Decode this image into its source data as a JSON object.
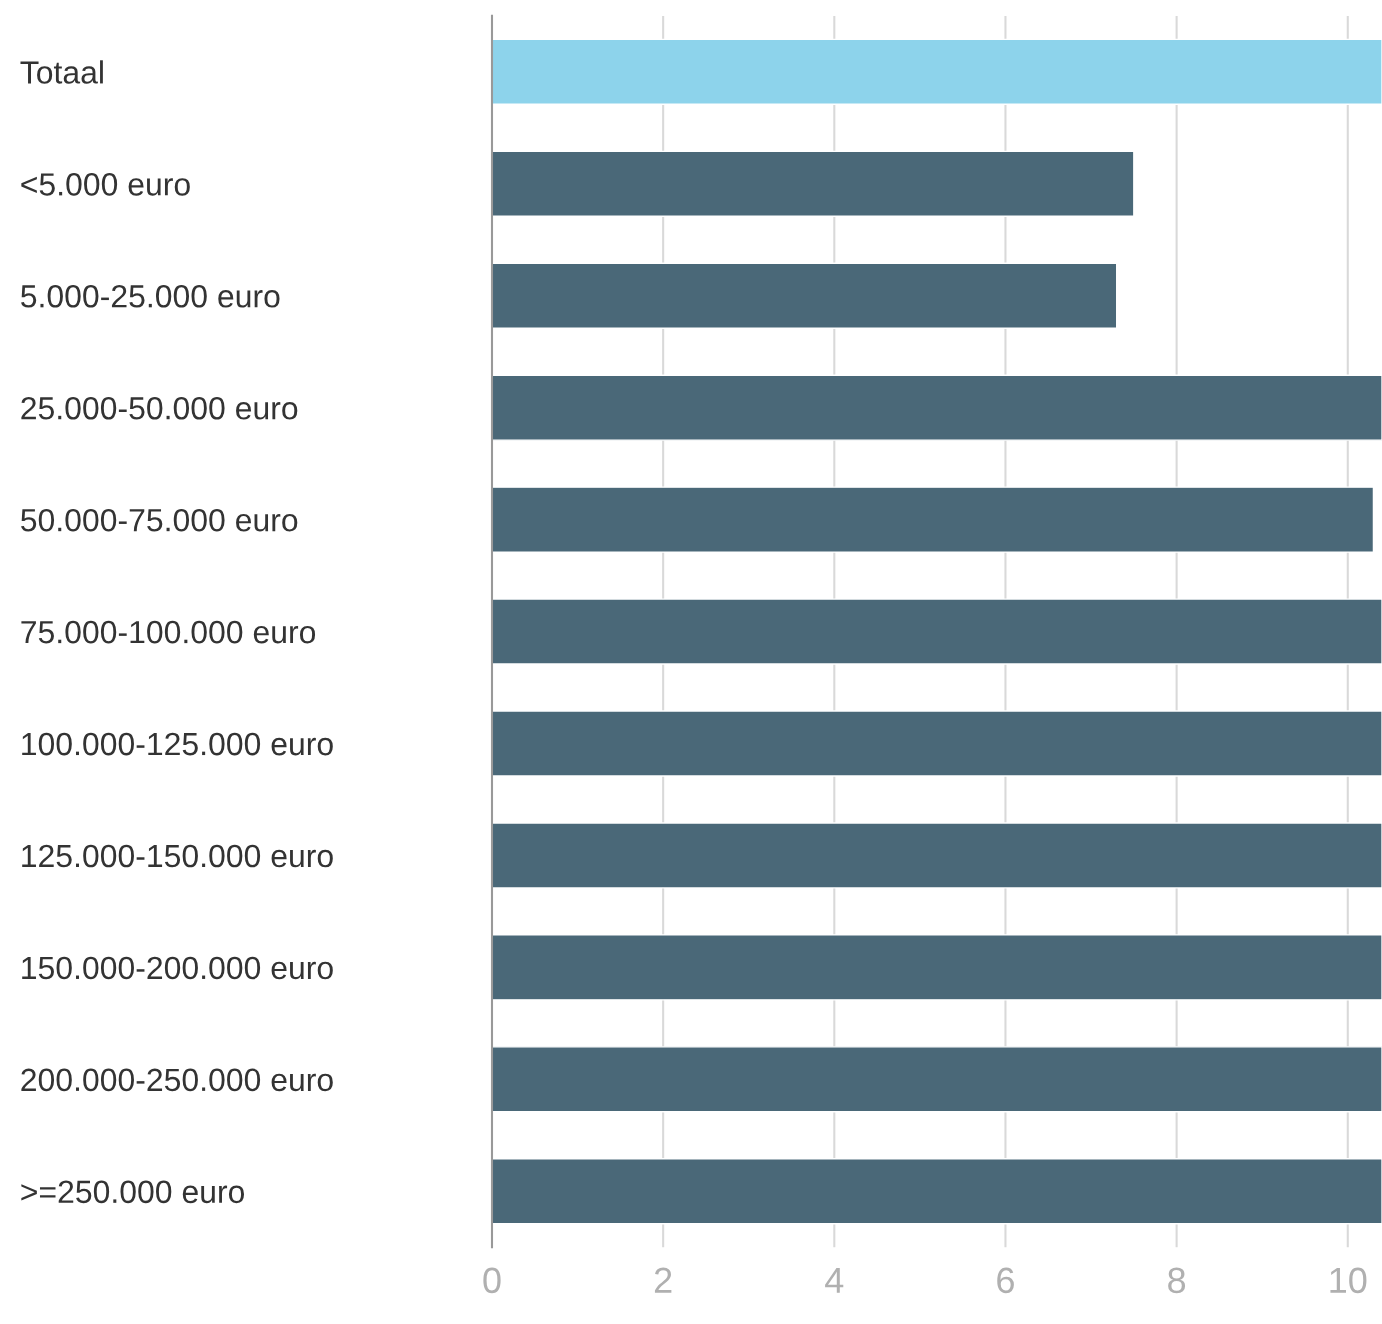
{
  "chart_data": {
    "type": "bar",
    "orientation": "horizontal",
    "categories": [
      "Totaal",
      "<5.000 euro",
      "5.000-25.000 euro",
      "25.000-50.000 euro",
      "50.000-75.000 euro",
      "75.000-100.000 euro",
      "100.000-125.000 euro",
      "125.000-150.000 euro",
      "150.000-200.000 euro",
      "200.000-250.000 euro",
      ">=250.000 euro"
    ],
    "values": [
      10.4,
      7.5,
      7.3,
      10.4,
      10.3,
      10.4,
      10.4,
      10.4,
      10.4,
      10.4,
      10.4
    ],
    "colors": [
      "#8dd3eb",
      "#4a6878",
      "#4a6878",
      "#4a6878",
      "#4a6878",
      "#4a6878",
      "#4a6878",
      "#4a6878",
      "#4a6878",
      "#4a6878",
      "#4a6878"
    ],
    "xlim": [
      0,
      10.4
    ],
    "xticks": [
      0,
      2,
      4,
      6,
      8,
      10
    ],
    "grid": "x",
    "legend": false
  }
}
